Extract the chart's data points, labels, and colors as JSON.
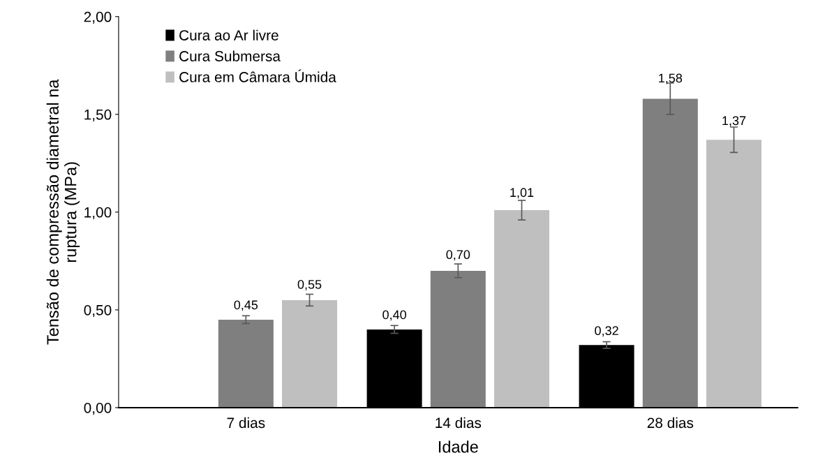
{
  "chart_data": {
    "type": "bar",
    "xlabel": "Idade",
    "ylabel": "Tensão de compressão diametral na\nruptura (MPa)",
    "categories": [
      "7 dias",
      "14 dias",
      "28 dias"
    ],
    "series": [
      {
        "name": "Cura ao Ar livre",
        "color": "#000000",
        "values": [
          null,
          0.4,
          0.32
        ],
        "errors": [
          null,
          0.02,
          0.017
        ],
        "value_labels": [
          null,
          "0,40",
          "0,32"
        ]
      },
      {
        "name": "Cura Submersa",
        "color": "#7f7f7f",
        "values": [
          0.45,
          0.7,
          1.58
        ],
        "errors": [
          0.02,
          0.035,
          0.08
        ],
        "value_labels": [
          "0,45",
          "0,70",
          "1,58"
        ]
      },
      {
        "name": "Cura em Câmara Úmida",
        "color": "#bfbfbf",
        "values": [
          0.55,
          1.01,
          1.37
        ],
        "errors": [
          0.03,
          0.05,
          0.065
        ],
        "value_labels": [
          "0,55",
          "1,01",
          "1,37"
        ]
      }
    ],
    "ylim": [
      0,
      2
    ],
    "yticks": [
      {
        "value": 0,
        "label": "0,00"
      },
      {
        "value": 0.5,
        "label": "0,50"
      },
      {
        "value": 1,
        "label": "1,00"
      },
      {
        "value": 1.5,
        "label": "1,50"
      },
      {
        "value": 2,
        "label": "2,00"
      }
    ],
    "grid": false,
    "legend": "top left"
  }
}
